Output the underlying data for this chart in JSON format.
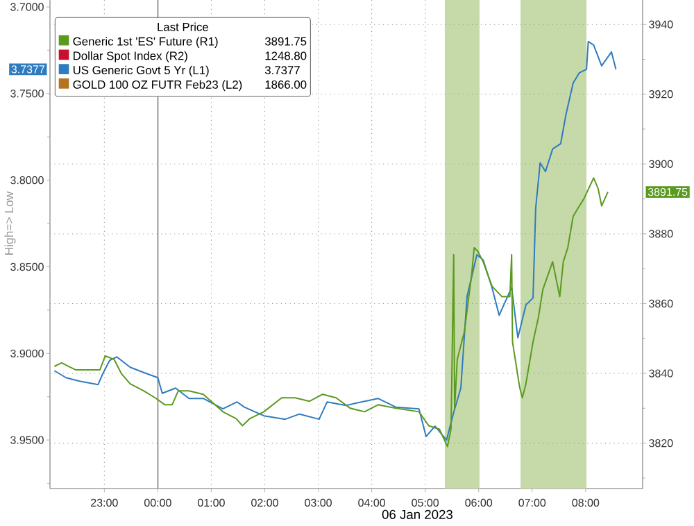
{
  "chart_data": {
    "type": "line",
    "ylabel": "High=> Low",
    "xlabel": "06 Jan 2023",
    "legend_title": "Last Price",
    "legend": "top left",
    "grid": true,
    "marker": "none",
    "xlim": [
      "2023-01-05T21:59",
      "2023-01-06T09:04"
    ],
    "xticks": [
      {
        "value": "2023-01-05T23:00",
        "label": "23:00"
      },
      {
        "value": "2023-01-06T00:00",
        "label": "00:00"
      },
      {
        "value": "2023-01-06T01:00",
        "label": "01:00"
      },
      {
        "value": "2023-01-06T02:00",
        "label": "02:00"
      },
      {
        "value": "2023-01-06T03:00",
        "label": "03:00"
      },
      {
        "value": "2023-01-06T04:00",
        "label": "04:00"
      },
      {
        "value": "2023-01-06T05:00",
        "label": "05:00"
      },
      {
        "value": "2023-01-06T06:00",
        "label": "06:00"
      },
      {
        "value": "2023-01-06T07:00",
        "label": "07:00"
      },
      {
        "value": "2023-01-06T08:00",
        "label": "08:00"
      }
    ],
    "ylim": [
      3.978,
      3.696
    ],
    "yticks": [
      {
        "value": 3.7,
        "label": "3.7000"
      },
      {
        "value": 3.725,
        "label": null
      },
      {
        "value": 3.75,
        "label": "3.7500"
      },
      {
        "value": 3.775,
        "label": null
      },
      {
        "value": 3.8,
        "label": "3.8000"
      },
      {
        "value": 3.825,
        "label": null
      },
      {
        "value": 3.85,
        "label": "3.8500"
      },
      {
        "value": 3.875,
        "label": null
      },
      {
        "value": 3.9,
        "label": "3.9000"
      },
      {
        "value": 3.925,
        "label": null
      },
      {
        "value": 3.95,
        "label": "3.9500"
      },
      {
        "value": 3.975,
        "label": null
      }
    ],
    "y2lim": [
      3807,
      3947
    ],
    "y2ticks": [
      {
        "value": 3810,
        "label": null
      },
      3820,
      {
        "value": 3830,
        "label": null
      },
      3840,
      {
        "value": 3850,
        "label": null
      },
      3860,
      {
        "value": 3870,
        "label": null
      },
      3880,
      {
        "value": 3890,
        "label": null
      },
      3900,
      {
        "value": 3910,
        "label": null
      },
      3920,
      {
        "value": 3930,
        "label": null
      },
      3940
    ],
    "series": [
      {
        "name": "Generic 1st 'ES' Future (R1)",
        "color": "#5b9a1e",
        "axis": "y2",
        "x": [
          "2023-01-05T22:04",
          "2023-01-05T22:12",
          "2023-01-05T22:28",
          "2023-01-05T22:40",
          "2023-01-05T22:55",
          "2023-01-05T23:01",
          "2023-01-05T23:11",
          "2023-01-05T23:19",
          "2023-01-05T23:29",
          "2023-01-05T23:44",
          "2023-01-05T23:57",
          "2023-01-06T00:08",
          "2023-01-06T00:16",
          "2023-01-06T00:23",
          "2023-01-06T00:35",
          "2023-01-06T00:51",
          "2023-01-06T01:13",
          "2023-01-06T01:28",
          "2023-01-06T01:35",
          "2023-01-06T01:43",
          "2023-01-06T01:59",
          "2023-01-06T02:19",
          "2023-01-06T02:34",
          "2023-01-06T02:50",
          "2023-01-06T03:05",
          "2023-01-06T03:20",
          "2023-01-06T03:36",
          "2023-01-06T03:52",
          "2023-01-06T04:07",
          "2023-01-06T04:27",
          "2023-01-06T04:53",
          "2023-01-06T05:04",
          "2023-01-06T05:16",
          "2023-01-06T05:25",
          "2023-01-06T05:29",
          "2023-01-06T05:32",
          "2023-01-06T05:33",
          "2023-01-06T05:36",
          "2023-01-06T05:44",
          "2023-01-06T05:52",
          "2023-01-06T05:55",
          "2023-01-06T05:59",
          "2023-01-06T06:05",
          "2023-01-06T06:15",
          "2023-01-06T06:26",
          "2023-01-06T06:35",
          "2023-01-06T06:37",
          "2023-01-06T06:38",
          "2023-01-06T06:46",
          "2023-01-06T06:49",
          "2023-01-06T06:53",
          "2023-01-06T07:01",
          "2023-01-06T07:07",
          "2023-01-06T07:12",
          "2023-01-06T07:23",
          "2023-01-06T07:31",
          "2023-01-06T07:35",
          "2023-01-06T07:40",
          "2023-01-06T07:46",
          "2023-01-06T07:53",
          "2023-01-06T07:58",
          "2023-01-06T08:09",
          "2023-01-06T08:14",
          "2023-01-06T08:18",
          "2023-01-06T08:25"
        ],
        "values": [
          3842,
          3843,
          3841,
          3841,
          3841,
          3845,
          3844,
          3840,
          3837,
          3835,
          3833,
          3831,
          3831,
          3835,
          3835,
          3834,
          3829,
          3827,
          3825,
          3827,
          3829,
          3833,
          3833,
          3832,
          3834,
          3833,
          3830,
          3829,
          3831,
          3830,
          3829,
          3825,
          3824,
          3819,
          3824,
          3874,
          3830,
          3844,
          3852,
          3868,
          3876,
          3875,
          3872,
          3865,
          3862,
          3862,
          3874,
          3849,
          3836,
          3833,
          3837,
          3849,
          3856,
          3864,
          3872,
          3862,
          3872,
          3876,
          3885,
          3888,
          3890,
          3896,
          3893,
          3888,
          3892
        ]
      },
      {
        "name": "Dollar Spot Index (R2)",
        "color": "#c8102e"
      },
      {
        "name": "US Generic Govt 5 Yr (L1)",
        "color": "#2f7bbf",
        "x": [
          "2023-01-05T22:04",
          "2023-01-05T22:17",
          "2023-01-05T22:32",
          "2023-01-05T22:53",
          "2023-01-05T22:58",
          "2023-01-05T23:06",
          "2023-01-05T23:14",
          "2023-01-05T23:29",
          "2023-01-05T23:44",
          "2023-01-06T00:00",
          "2023-01-06T00:05",
          "2023-01-06T00:20",
          "2023-01-06T00:35",
          "2023-01-06T00:51",
          "2023-01-06T01:13",
          "2023-01-06T01:29",
          "2023-01-06T01:37",
          "2023-01-06T01:59",
          "2023-01-06T02:23",
          "2023-01-06T02:39",
          "2023-01-06T03:01",
          "2023-01-06T03:10",
          "2023-01-06T03:31",
          "2023-01-06T04:07",
          "2023-01-06T04:27",
          "2023-01-06T04:53",
          "2023-01-06T05:01",
          "2023-01-06T05:11",
          "2023-01-06T05:24",
          "2023-01-06T05:32",
          "2023-01-06T05:40",
          "2023-01-06T05:47",
          "2023-01-06T05:58",
          "2023-01-06T06:05",
          "2023-01-06T06:15",
          "2023-01-06T06:23",
          "2023-01-06T06:37",
          "2023-01-06T06:44",
          "2023-01-06T06:53",
          "2023-01-06T07:01",
          "2023-01-06T07:04",
          "2023-01-06T07:09",
          "2023-01-06T07:15",
          "2023-01-06T07:23",
          "2023-01-06T07:32",
          "2023-01-06T07:38",
          "2023-01-06T07:46",
          "2023-01-06T07:53",
          "2023-01-06T08:01",
          "2023-01-06T08:03",
          "2023-01-06T08:09",
          "2023-01-06T08:18",
          "2023-01-06T08:29",
          "2023-01-06T08:34"
        ],
        "values": [
          3.91,
          3.914,
          3.916,
          3.918,
          3.912,
          3.904,
          3.902,
          3.908,
          3.911,
          3.914,
          3.923,
          3.92,
          3.926,
          3.926,
          3.932,
          3.928,
          3.931,
          3.936,
          3.938,
          3.935,
          3.938,
          3.928,
          3.93,
          3.926,
          3.931,
          3.932,
          3.948,
          3.942,
          3.95,
          3.934,
          3.92,
          3.867,
          3.843,
          3.846,
          3.862,
          3.878,
          3.862,
          3.891,
          3.872,
          3.868,
          3.816,
          3.79,
          3.795,
          3.782,
          3.779,
          3.762,
          3.744,
          3.738,
          3.736,
          3.72,
          3.722,
          3.734,
          3.726,
          3.736
        ]
      },
      {
        "name": "GOLD 100 OZ FUTR Feb23 (L2)",
        "color": "#b5721f"
      }
    ],
    "annotations": [
      "3891.75",
      "1248.80",
      "3.7377",
      "1866.00"
    ],
    "bands": [
      {
        "axis": "x",
        "from": "2023-01-06T05:22",
        "to": "2023-01-06T06:01",
        "color": "#c6d9a9"
      },
      {
        "axis": "x",
        "from": "2023-01-06T06:47",
        "to": "2023-01-06T08:01",
        "color": "#c6d9a9"
      }
    ],
    "ref_lines": [
      {
        "axis": "x",
        "value": "2023-01-06T00:00",
        "color": "#a0a0a0"
      }
    ]
  }
}
